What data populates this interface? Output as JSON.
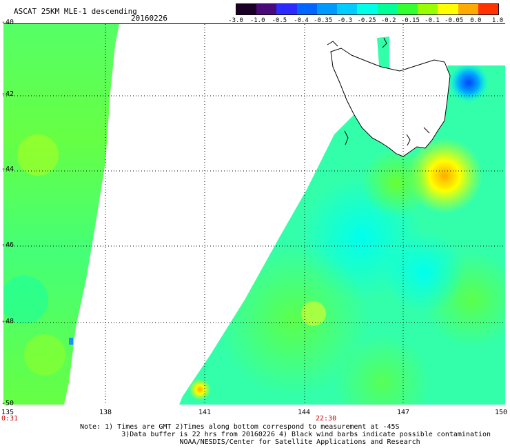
{
  "title": "ASCAT 25KM MLE-1 descending",
  "date": "20160226",
  "colorbar": {
    "tick_labels": [
      "-3.0",
      "-1.0",
      "-0.5",
      "-0.4",
      "-0.35",
      "-0.3",
      "-0.25",
      "-0.2",
      "-0.15",
      "-0.1",
      "-0.05",
      "0.0",
      "1.0"
    ],
    "colors": [
      "#1a0026",
      "#4a0a7a",
      "#2b2bff",
      "#0066ff",
      "#0099ff",
      "#00ccff",
      "#00ffe6",
      "#00ff99",
      "#33ff33",
      "#99ff00",
      "#ffff00",
      "#ffaa00",
      "#ff3300"
    ]
  },
  "axes": {
    "lat_labels": [
      "-40",
      "-42",
      "-44",
      "-46",
      "-48",
      "-50"
    ],
    "lon_labels": [
      "135",
      "138",
      "141",
      "144",
      "147",
      "150"
    ]
  },
  "times": {
    "left": "0:31",
    "bottom": "22:30"
  },
  "notes": [
    "Note: 1) Times are GMT 2)Times along bottom correspond to measurement at -45S",
    "3)Data buffer is 22 hrs from 20160226 4) Black wind barbs indicate possible contamination",
    "NOAA/NESDIS/Center for Satellite Applications and Research"
  ]
}
